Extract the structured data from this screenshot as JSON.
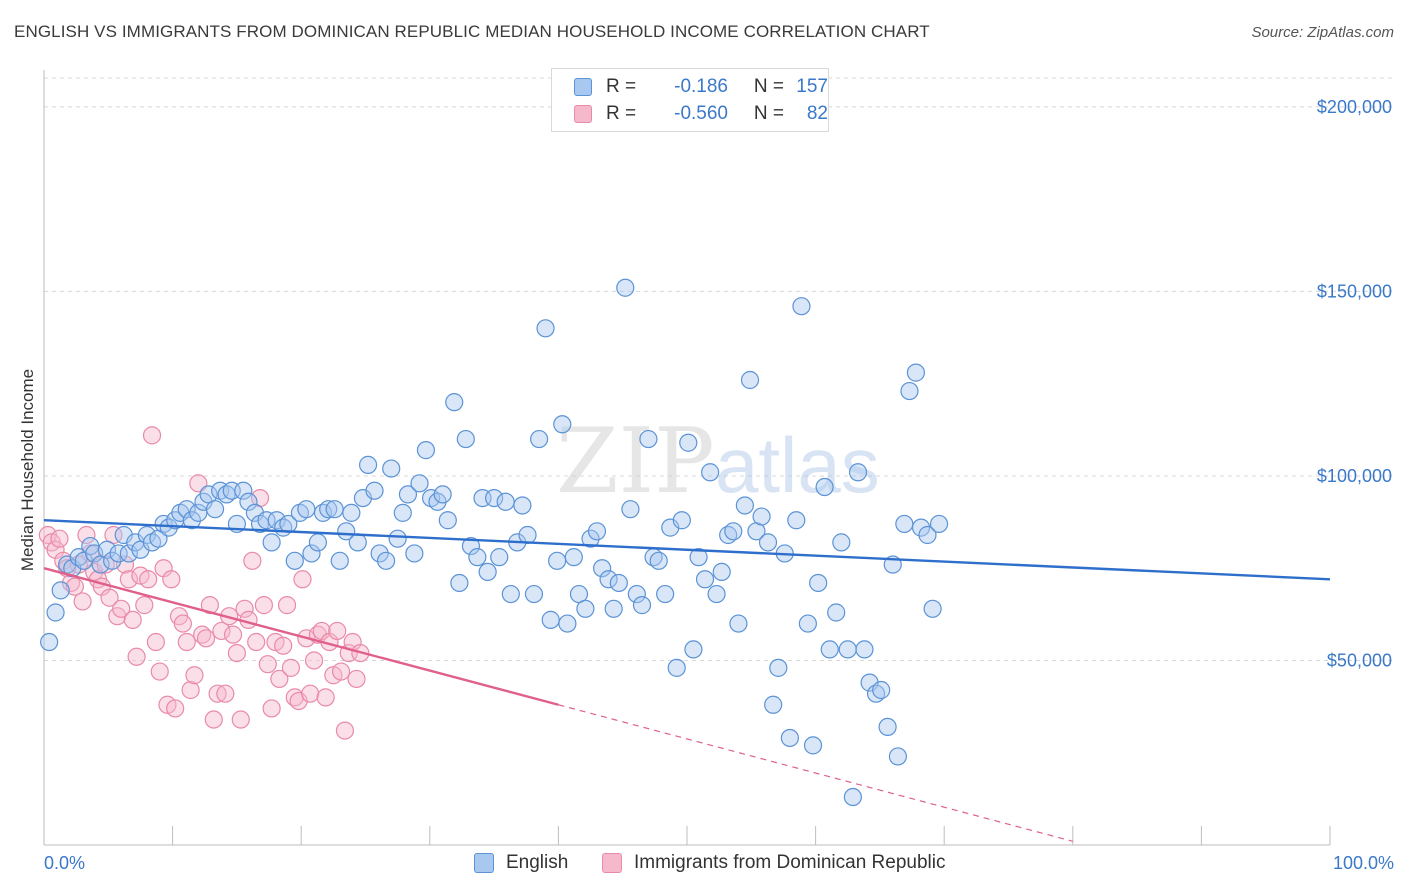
{
  "header": {
    "title": "ENGLISH VS IMMIGRANTS FROM DOMINICAN REPUBLIC MEDIAN HOUSEHOLD INCOME CORRELATION CHART",
    "source": "Source: ZipAtlas.com"
  },
  "watermark": {
    "zip": "ZIP",
    "atlas": "atlas"
  },
  "stats": {
    "english": {
      "r_label": "R =",
      "r_value": "-0.186",
      "n_label": "N =",
      "n_value": "157"
    },
    "dominican": {
      "r_label": "R =",
      "r_value": "-0.560",
      "n_label": "N =",
      "n_value": "82"
    }
  },
  "legend": {
    "english": "English",
    "dominican": "Immigrants from Dominican Republic"
  },
  "colors": {
    "english_fill": "#a9c8f0",
    "english_stroke": "#5b93d6",
    "english_line": "#2f6fcc",
    "dominican_fill": "#f6b8cb",
    "dominican_stroke": "#e98aa8",
    "dominican_line": "#e0608c",
    "accent_text": "#3a78c9",
    "grid": "#d8d8d8"
  },
  "chart_data": {
    "type": "scatter",
    "title": "ENGLISH VS IMMIGRANTS FROM DOMINICAN REPUBLIC MEDIAN HOUSEHOLD INCOME CORRELATION CHART",
    "xlabel": "",
    "ylabel": "Median Household Income",
    "xlim": [
      0,
      100
    ],
    "ylim": [
      0,
      210000
    ],
    "x_tick_labels": [
      "0.0%",
      "100.0%"
    ],
    "y_ticks": [
      50000,
      100000,
      150000,
      200000
    ],
    "y_tick_labels": [
      "$50,000",
      "$100,000",
      "$150,000",
      "$200,000"
    ],
    "grid": true,
    "legend_position": "bottom",
    "series": [
      {
        "name": "English",
        "trend": {
          "x": [
            0,
            100
          ],
          "y": [
            88000,
            72000
          ]
        },
        "points": [
          [
            0.4,
            55000
          ],
          [
            0.9,
            63000
          ],
          [
            1.3,
            69000
          ],
          [
            1.8,
            76000
          ],
          [
            2.2,
            75000
          ],
          [
            2.7,
            78000
          ],
          [
            3.1,
            77000
          ],
          [
            3.6,
            81000
          ],
          [
            3.9,
            79000
          ],
          [
            4.4,
            76000
          ],
          [
            4.9,
            80000
          ],
          [
            5.3,
            77000
          ],
          [
            5.8,
            79000
          ],
          [
            6.2,
            84000
          ],
          [
            6.6,
            79000
          ],
          [
            7.1,
            82000
          ],
          [
            7.5,
            80000
          ],
          [
            8.0,
            84000
          ],
          [
            8.4,
            82000
          ],
          [
            8.9,
            83000
          ],
          [
            9.3,
            87000
          ],
          [
            9.7,
            86000
          ],
          [
            10.2,
            88000
          ],
          [
            10.6,
            90000
          ],
          [
            11.1,
            91000
          ],
          [
            11.5,
            88000
          ],
          [
            12.0,
            90000
          ],
          [
            12.4,
            93000
          ],
          [
            12.8,
            95000
          ],
          [
            13.3,
            91000
          ],
          [
            13.7,
            96000
          ],
          [
            14.2,
            95000
          ],
          [
            14.6,
            96000
          ],
          [
            15.0,
            87000
          ],
          [
            15.5,
            96000
          ],
          [
            15.9,
            93000
          ],
          [
            16.4,
            90000
          ],
          [
            16.8,
            87000
          ],
          [
            17.3,
            88000
          ],
          [
            17.7,
            82000
          ],
          [
            18.1,
            88000
          ],
          [
            18.6,
            86000
          ],
          [
            19.0,
            87000
          ],
          [
            19.5,
            77000
          ],
          [
            19.9,
            90000
          ],
          [
            20.4,
            91000
          ],
          [
            20.8,
            79000
          ],
          [
            21.3,
            82000
          ],
          [
            21.7,
            90000
          ],
          [
            22.1,
            91000
          ],
          [
            22.6,
            91000
          ],
          [
            23.0,
            77000
          ],
          [
            23.5,
            85000
          ],
          [
            23.9,
            90000
          ],
          [
            24.4,
            82000
          ],
          [
            24.8,
            94000
          ],
          [
            25.2,
            103000
          ],
          [
            25.7,
            96000
          ],
          [
            26.1,
            79000
          ],
          [
            26.6,
            77000
          ],
          [
            27.0,
            102000
          ],
          [
            27.5,
            83000
          ],
          [
            27.9,
            90000
          ],
          [
            28.3,
            95000
          ],
          [
            28.8,
            79000
          ],
          [
            29.2,
            98000
          ],
          [
            29.7,
            107000
          ],
          [
            30.1,
            94000
          ],
          [
            30.6,
            93000
          ],
          [
            31.0,
            95000
          ],
          [
            31.4,
            88000
          ],
          [
            31.9,
            120000
          ],
          [
            32.3,
            71000
          ],
          [
            32.8,
            110000
          ],
          [
            33.2,
            81000
          ],
          [
            33.7,
            78000
          ],
          [
            34.1,
            94000
          ],
          [
            34.5,
            74000
          ],
          [
            35.0,
            94000
          ],
          [
            35.4,
            78000
          ],
          [
            35.9,
            93000
          ],
          [
            36.3,
            68000
          ],
          [
            36.8,
            82000
          ],
          [
            37.2,
            92000
          ],
          [
            37.6,
            84000
          ],
          [
            38.1,
            68000
          ],
          [
            38.5,
            110000
          ],
          [
            39.0,
            140000
          ],
          [
            39.4,
            61000
          ],
          [
            39.9,
            77000
          ],
          [
            40.3,
            114000
          ],
          [
            40.7,
            60000
          ],
          [
            41.2,
            78000
          ],
          [
            41.6,
            68000
          ],
          [
            42.1,
            64000
          ],
          [
            42.5,
            83000
          ],
          [
            43.0,
            85000
          ],
          [
            43.4,
            75000
          ],
          [
            43.9,
            72000
          ],
          [
            44.3,
            64000
          ],
          [
            44.7,
            71000
          ],
          [
            45.2,
            151000
          ],
          [
            45.6,
            91000
          ],
          [
            46.1,
            68000
          ],
          [
            46.5,
            65000
          ],
          [
            47.0,
            110000
          ],
          [
            47.4,
            78000
          ],
          [
            47.8,
            77000
          ],
          [
            48.3,
            68000
          ],
          [
            48.7,
            86000
          ],
          [
            49.2,
            48000
          ],
          [
            49.6,
            88000
          ],
          [
            50.1,
            109000
          ],
          [
            50.5,
            53000
          ],
          [
            50.9,
            78000
          ],
          [
            51.4,
            72000
          ],
          [
            51.8,
            101000
          ],
          [
            52.3,
            68000
          ],
          [
            52.7,
            74000
          ],
          [
            53.2,
            84000
          ],
          [
            53.6,
            85000
          ],
          [
            54.0,
            60000
          ],
          [
            54.5,
            92000
          ],
          [
            54.9,
            126000
          ],
          [
            55.4,
            85000
          ],
          [
            55.8,
            89000
          ],
          [
            56.3,
            82000
          ],
          [
            56.7,
            38000
          ],
          [
            57.1,
            48000
          ],
          [
            57.6,
            79000
          ],
          [
            58.0,
            29000
          ],
          [
            58.5,
            88000
          ],
          [
            58.9,
            146000
          ],
          [
            59.4,
            60000
          ],
          [
            59.8,
            27000
          ],
          [
            60.2,
            71000
          ],
          [
            60.7,
            97000
          ],
          [
            61.1,
            53000
          ],
          [
            61.6,
            63000
          ],
          [
            62.0,
            82000
          ],
          [
            62.5,
            53000
          ],
          [
            62.9,
            13000
          ],
          [
            63.3,
            101000
          ],
          [
            63.8,
            53000
          ],
          [
            64.2,
            44000
          ],
          [
            64.7,
            41000
          ],
          [
            65.1,
            42000
          ],
          [
            65.6,
            32000
          ],
          [
            66.0,
            76000
          ],
          [
            66.4,
            24000
          ],
          [
            66.9,
            87000
          ],
          [
            67.3,
            123000
          ],
          [
            67.8,
            128000
          ],
          [
            68.2,
            86000
          ],
          [
            68.7,
            84000
          ],
          [
            69.1,
            64000
          ],
          [
            69.6,
            87000
          ]
        ]
      },
      {
        "name": "Immigrants from Dominican Republic",
        "trend": {
          "x": [
            0,
            40
          ],
          "y": [
            75000,
            38000
          ]
        },
        "trend_dashed": {
          "x": [
            40,
            80
          ],
          "y": [
            38000,
            1000
          ]
        },
        "points": [
          [
            0.3,
            84000
          ],
          [
            0.6,
            82000
          ],
          [
            0.9,
            80000
          ],
          [
            1.2,
            83000
          ],
          [
            1.5,
            77000
          ],
          [
            1.8,
            75000
          ],
          [
            2.1,
            71000
          ],
          [
            2.4,
            70000
          ],
          [
            2.7,
            76000
          ],
          [
            3.0,
            66000
          ],
          [
            3.3,
            84000
          ],
          [
            3.6,
            79000
          ],
          [
            3.9,
            74000
          ],
          [
            4.2,
            72000
          ],
          [
            4.5,
            70000
          ],
          [
            4.8,
            76000
          ],
          [
            5.1,
            67000
          ],
          [
            5.4,
            84000
          ],
          [
            5.7,
            62000
          ],
          [
            6.0,
            64000
          ],
          [
            6.3,
            76000
          ],
          [
            6.6,
            72000
          ],
          [
            6.9,
            61000
          ],
          [
            7.2,
            51000
          ],
          [
            7.5,
            73000
          ],
          [
            7.8,
            65000
          ],
          [
            8.1,
            72000
          ],
          [
            8.4,
            111000
          ],
          [
            8.7,
            55000
          ],
          [
            9.0,
            47000
          ],
          [
            9.3,
            75000
          ],
          [
            9.6,
            38000
          ],
          [
            9.9,
            72000
          ],
          [
            10.2,
            37000
          ],
          [
            10.5,
            62000
          ],
          [
            10.8,
            60000
          ],
          [
            11.1,
            55000
          ],
          [
            11.4,
            42000
          ],
          [
            11.7,
            46000
          ],
          [
            12.0,
            98000
          ],
          [
            12.3,
            57000
          ],
          [
            12.6,
            56000
          ],
          [
            12.9,
            65000
          ],
          [
            13.2,
            34000
          ],
          [
            13.5,
            41000
          ],
          [
            13.8,
            58000
          ],
          [
            14.1,
            41000
          ],
          [
            14.4,
            62000
          ],
          [
            14.7,
            57000
          ],
          [
            15.0,
            52000
          ],
          [
            15.3,
            34000
          ],
          [
            15.6,
            64000
          ],
          [
            15.9,
            61000
          ],
          [
            16.2,
            77000
          ],
          [
            16.5,
            55000
          ],
          [
            16.8,
            94000
          ],
          [
            17.1,
            65000
          ],
          [
            17.4,
            49000
          ],
          [
            17.7,
            37000
          ],
          [
            18.0,
            55000
          ],
          [
            18.3,
            45000
          ],
          [
            18.6,
            54000
          ],
          [
            18.9,
            65000
          ],
          [
            19.2,
            48000
          ],
          [
            19.5,
            40000
          ],
          [
            19.8,
            39000
          ],
          [
            20.1,
            72000
          ],
          [
            20.4,
            56000
          ],
          [
            20.7,
            41000
          ],
          [
            21.0,
            50000
          ],
          [
            21.3,
            57000
          ],
          [
            21.6,
            58000
          ],
          [
            21.9,
            40000
          ],
          [
            22.2,
            55000
          ],
          [
            22.5,
            46000
          ],
          [
            22.8,
            58000
          ],
          [
            23.1,
            47000
          ],
          [
            23.4,
            31000
          ],
          [
            23.7,
            52000
          ],
          [
            24.0,
            55000
          ],
          [
            24.3,
            45000
          ],
          [
            24.6,
            52000
          ]
        ]
      }
    ]
  }
}
